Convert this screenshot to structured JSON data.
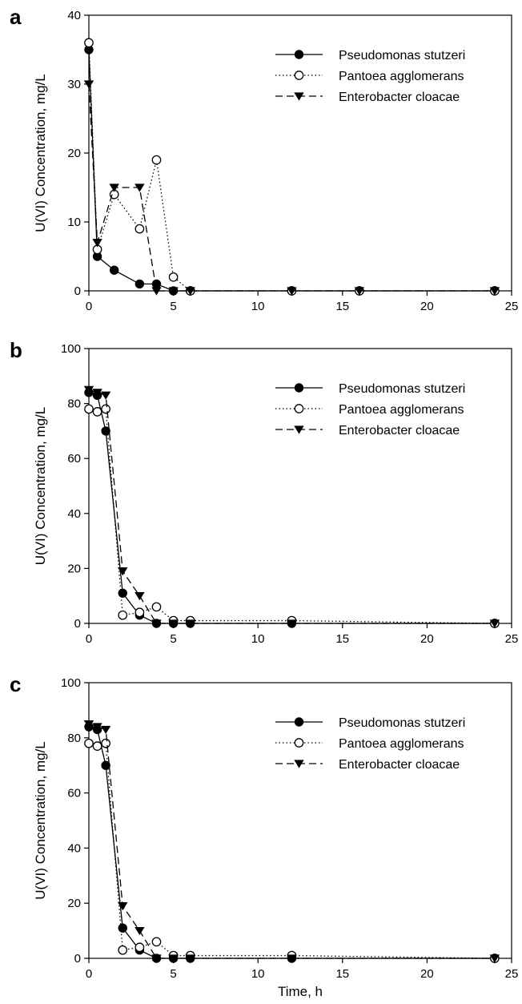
{
  "figure": {
    "xlabel": "Time, h"
  },
  "chart_data": [
    {
      "panel": "a",
      "type": "line",
      "ylabel": "U(VI) Concentration, mg/L",
      "xlim": [
        0,
        25
      ],
      "ylim": [
        0,
        40
      ],
      "xticks": [
        0,
        5,
        10,
        15,
        20,
        25
      ],
      "yticks": [
        0,
        10,
        20,
        30,
        40
      ],
      "grid": false,
      "legend_position": "top-right",
      "series": [
        {
          "name": "Pseudomonas stutzeri",
          "marker": "filled-circle",
          "line": "solid",
          "x": [
            0,
            0.5,
            1.5,
            3,
            4,
            5,
            6,
            12,
            16,
            24
          ],
          "y": [
            35,
            5,
            3,
            1,
            1,
            0,
            0,
            0,
            0,
            0
          ]
        },
        {
          "name": "Pantoea agglomerans",
          "marker": "open-circle",
          "line": "dotted",
          "x": [
            0,
            0.5,
            1.5,
            3,
            4,
            5,
            6,
            12,
            16,
            24
          ],
          "y": [
            36,
            6,
            14,
            9,
            19,
            2,
            0,
            0,
            0,
            0
          ]
        },
        {
          "name": "Enterobacter cloacae",
          "marker": "filled-triangle-down",
          "line": "dashed",
          "x": [
            0,
            0.5,
            1.5,
            3,
            4,
            5,
            6,
            12,
            16,
            24
          ],
          "y": [
            30,
            7,
            15,
            15,
            0,
            0,
            0,
            0,
            0,
            0
          ]
        }
      ]
    },
    {
      "panel": "b",
      "type": "line",
      "ylabel": "U(VI) Concentration, mg/L",
      "xlim": [
        0,
        25
      ],
      "ylim": [
        0,
        100
      ],
      "xticks": [
        0,
        5,
        10,
        15,
        20,
        25
      ],
      "yticks": [
        0,
        20,
        40,
        60,
        80,
        100
      ],
      "grid": false,
      "legend_position": "top-right",
      "series": [
        {
          "name": "Pseudomonas stutzeri",
          "marker": "filled-circle",
          "line": "solid",
          "x": [
            0,
            0.5,
            1,
            2,
            3,
            4,
            5,
            6,
            12,
            24
          ],
          "y": [
            84,
            83,
            70,
            11,
            3,
            0,
            0,
            0,
            0,
            0
          ]
        },
        {
          "name": "Pantoea agglomerans",
          "marker": "open-circle",
          "line": "dotted",
          "x": [
            0,
            0.5,
            1,
            2,
            3,
            4,
            5,
            6,
            12,
            24
          ],
          "y": [
            78,
            77,
            78,
            3,
            4,
            6,
            1,
            1,
            1,
            0
          ]
        },
        {
          "name": "Enterobacter cloacae",
          "marker": "filled-triangle-down",
          "line": "dashed",
          "x": [
            0,
            0.5,
            1,
            2,
            3,
            4,
            5,
            6,
            12,
            24
          ],
          "y": [
            85,
            84,
            83,
            19,
            10,
            0,
            0,
            0,
            0,
            0
          ]
        }
      ]
    },
    {
      "panel": "c",
      "type": "line",
      "ylabel": "U(VI) Concentration, mg/L",
      "xlabel": "Time, h",
      "xlim": [
        0,
        25
      ],
      "ylim": [
        0,
        100
      ],
      "xticks": [
        0,
        5,
        10,
        15,
        20,
        25
      ],
      "yticks": [
        0,
        20,
        40,
        60,
        80,
        100
      ],
      "grid": false,
      "legend_position": "top-right",
      "series": [
        {
          "name": "Pseudomonas stutzeri",
          "marker": "filled-circle",
          "line": "solid",
          "x": [
            0,
            0.5,
            1,
            2,
            3,
            4,
            5,
            6,
            12,
            24
          ],
          "y": [
            84,
            83,
            70,
            11,
            3,
            0,
            0,
            0,
            0,
            0
          ]
        },
        {
          "name": "Pantoea agglomerans",
          "marker": "open-circle",
          "line": "dotted",
          "x": [
            0,
            0.5,
            1,
            2,
            3,
            4,
            5,
            6,
            12,
            24
          ],
          "y": [
            78,
            77,
            78,
            3,
            4,
            6,
            1,
            1,
            1,
            0
          ]
        },
        {
          "name": "Enterobacter cloacae",
          "marker": "filled-triangle-down",
          "line": "dashed",
          "x": [
            0,
            0.5,
            1,
            2,
            3,
            4,
            5,
            6,
            12,
            24
          ],
          "y": [
            85,
            84,
            83,
            19,
            10,
            0,
            0,
            0,
            0,
            0
          ]
        }
      ]
    }
  ]
}
